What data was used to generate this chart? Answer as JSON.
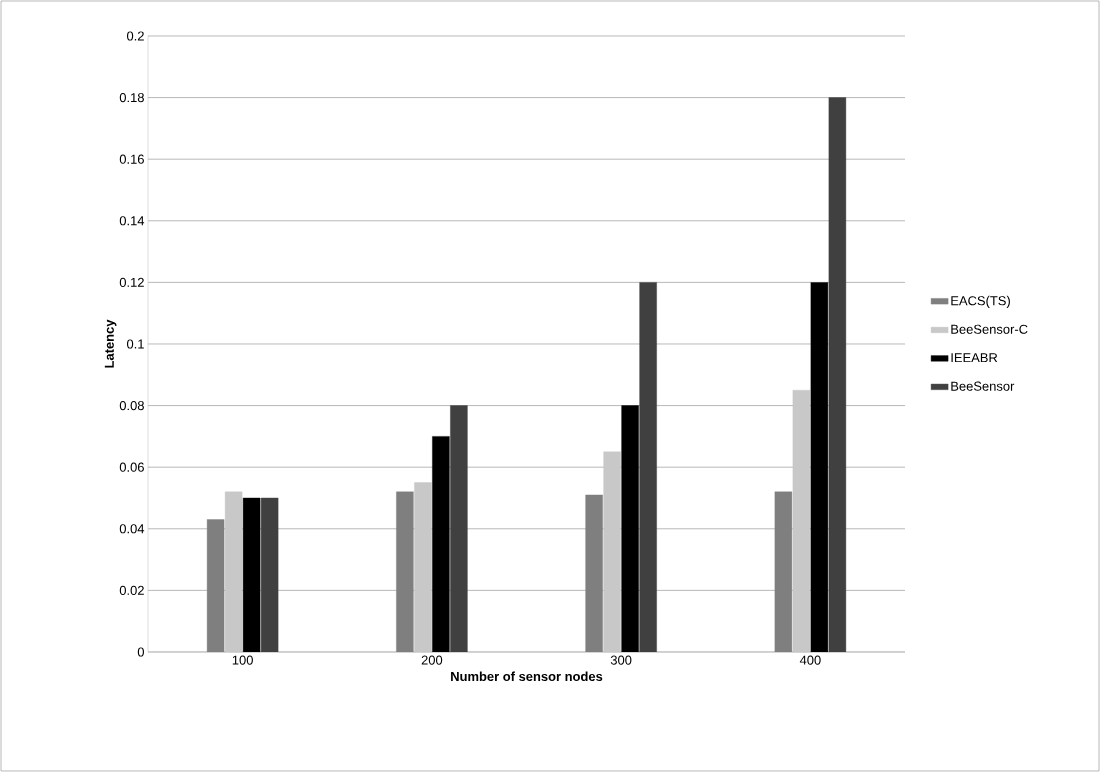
{
  "chart_data": {
    "type": "bar",
    "xlabel": "Number of sensor nodes",
    "ylabel": "Latency",
    "categories": [
      "100",
      "200",
      "300",
      "400"
    ],
    "series": [
      {
        "name": "EACS(TS)",
        "color": "#7f7f7f",
        "values": [
          0.043,
          0.052,
          0.051,
          0.052
        ]
      },
      {
        "name": "BeeSensor-C",
        "color": "#c8c8c8",
        "values": [
          0.052,
          0.055,
          0.065,
          0.085
        ]
      },
      {
        "name": "IEEABR",
        "color": "#000000",
        "values": [
          0.05,
          0.07,
          0.08,
          0.12
        ]
      },
      {
        "name": "BeeSensor",
        "color": "#404040",
        "values": [
          0.05,
          0.08,
          0.12,
          0.18
        ]
      }
    ],
    "ylim": [
      0,
      0.2
    ],
    "yticks": [
      0,
      0.02,
      0.04,
      0.06,
      0.08,
      0.1,
      0.12,
      0.14,
      0.16,
      0.18,
      0.2
    ],
    "grid": "y",
    "legend": "right"
  }
}
